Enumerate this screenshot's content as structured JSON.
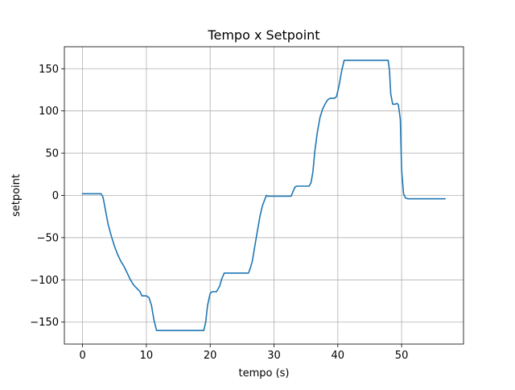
{
  "chart_data": {
    "type": "line",
    "title": "Tempo x Setpoint",
    "xlabel": "tempo (s)",
    "ylabel": "setpoint",
    "xlim": [
      -2.85,
      59.7
    ],
    "ylim": [
      -176,
      176
    ],
    "xticks": [
      0,
      10,
      20,
      30,
      40,
      50
    ],
    "yticks": [
      -150,
      -100,
      -50,
      0,
      50,
      100,
      150
    ],
    "xtick_labels": [
      "0",
      "10",
      "20",
      "30",
      "40",
      "50"
    ],
    "ytick_labels": [
      "−150",
      "−100",
      "−50",
      "0",
      "50",
      "100",
      "150"
    ],
    "grid": true,
    "color": "#1f77b4",
    "series": [
      {
        "x": [
          0,
          2.9,
          3.2,
          3.5,
          4.0,
          4.5,
          5.0,
          5.5,
          6.0,
          6.5,
          7.0,
          7.5,
          8.0,
          8.5,
          9.0,
          9.3,
          9.6,
          10.0,
          10.4,
          10.8,
          11.2,
          11.6,
          12.0,
          15.0,
          18.0,
          19.0,
          19.3,
          19.6,
          20.0,
          20.3,
          20.6,
          21.0,
          21.5,
          21.8,
          22.2,
          24.0,
          25.0,
          25.5,
          26.0,
          26.3,
          26.6,
          27.0,
          27.4,
          27.8,
          28.2,
          28.6,
          28.8,
          29.0,
          29.5,
          30.0,
          31.0,
          32.0,
          32.7,
          33.0,
          33.3,
          33.6,
          34.0,
          35.0,
          35.5,
          35.8,
          36.1,
          36.4,
          36.8,
          37.2,
          37.6,
          38.0,
          38.4,
          38.8,
          39.2,
          39.5,
          39.8,
          40.2,
          40.6,
          41.0,
          43.0,
          45.0,
          47.0,
          47.9,
          48.1,
          48.3,
          48.6,
          49.0,
          49.3,
          49.5,
          49.8,
          50.0,
          50.3,
          50.6,
          51.0,
          53.0,
          54.0,
          55.0,
          56.0,
          56.8
        ],
        "y": [
          2,
          2,
          -2,
          -14,
          -34,
          -48,
          -60,
          -70,
          -78,
          -84,
          -92,
          -100,
          -106,
          -110,
          -114,
          -119,
          -119,
          -119,
          -121,
          -130,
          -148,
          -160,
          -160,
          -160,
          -160,
          -160,
          -150,
          -130,
          -116,
          -114,
          -114,
          -114,
          -107,
          -99,
          -92,
          -92,
          -92,
          -92,
          -92,
          -86,
          -78,
          -60,
          -42,
          -25,
          -12,
          -4,
          0,
          -1,
          -1,
          -1,
          -1,
          -1,
          -1,
          5,
          10,
          11,
          11,
          11,
          11,
          15,
          28,
          52,
          75,
          92,
          102,
          108,
          113,
          115,
          115,
          115,
          117,
          130,
          147,
          160,
          160,
          160,
          160,
          160,
          148,
          120,
          108,
          108,
          109,
          107,
          90,
          30,
          2,
          -3,
          -4,
          -4,
          -4,
          -4,
          -4,
          -4
        ],
        "color": "#1f77b4"
      }
    ]
  }
}
